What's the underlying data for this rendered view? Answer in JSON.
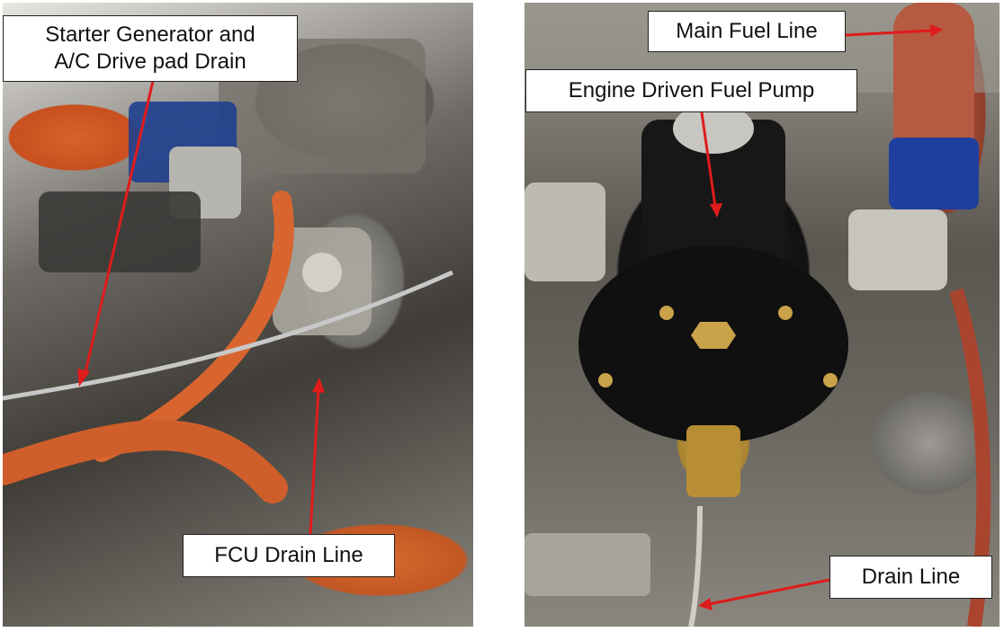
{
  "labels": {
    "starter_line1": "Starter Generator and",
    "starter_line2": "A/C Drive pad Drain",
    "fcu_drain": "FCU Drain Line",
    "main_fuel": "Main Fuel Line",
    "fuel_pump": "Engine Driven Fuel Pump",
    "drain_line": "Drain Line"
  },
  "colors": {
    "arrow": "#e01b1b"
  }
}
